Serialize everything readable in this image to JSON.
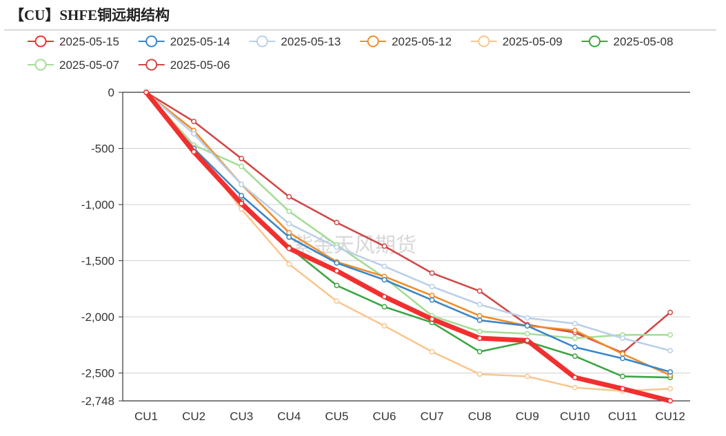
{
  "title": "【CU】SHFE铜远期结构",
  "watermark": "紫金天风期货",
  "chart_data": {
    "type": "line",
    "categories": [
      "CU1",
      "CU2",
      "CU3",
      "CU4",
      "CU5",
      "CU6",
      "CU7",
      "CU8",
      "CU9",
      "CU10",
      "CU11",
      "CU12"
    ],
    "ylim": [
      -2748,
      0
    ],
    "yticks": [
      0,
      -500,
      -1000,
      -1500,
      -2000,
      -2500,
      -2748
    ],
    "ytick_labels": [
      "0",
      "-500",
      "-1,000",
      "-1,500",
      "-2,000",
      "-2,500",
      "-2,748"
    ],
    "grid": true,
    "legend_position": "top-left",
    "series": [
      {
        "name": "2025-05-15",
        "color": "#f03030",
        "emphasis": true,
        "values": [
          0,
          -530,
          -990,
          -1390,
          -1590,
          -1820,
          -2020,
          -2190,
          -2210,
          -2540,
          -2640,
          -2748
        ]
      },
      {
        "name": "2025-05-14",
        "color": "#3a86c8",
        "values": [
          0,
          -500,
          -920,
          -1290,
          -1520,
          -1670,
          -1850,
          -2030,
          -2080,
          -2270,
          -2370,
          -2490
        ]
      },
      {
        "name": "2025-05-13",
        "color": "#b9cfe8",
        "values": [
          0,
          -370,
          -820,
          -1170,
          -1380,
          -1550,
          -1730,
          -1890,
          -2010,
          -2060,
          -2190,
          -2300
        ]
      },
      {
        "name": "2025-05-12",
        "color": "#f08c28",
        "values": [
          0,
          -340,
          -820,
          -1250,
          -1510,
          -1640,
          -1810,
          -1990,
          -2080,
          -2120,
          -2330,
          -2520
        ]
      },
      {
        "name": "2025-05-09",
        "color": "#f9c68e",
        "values": [
          0,
          -490,
          -1040,
          -1530,
          -1860,
          -2080,
          -2310,
          -2510,
          -2530,
          -2630,
          -2660,
          -2640
        ]
      },
      {
        "name": "2025-05-08",
        "color": "#3ca541",
        "values": [
          0,
          -520,
          -970,
          -1380,
          -1720,
          -1910,
          -2050,
          -2310,
          -2220,
          -2350,
          -2530,
          -2540
        ]
      },
      {
        "name": "2025-05-07",
        "color": "#a4dd95",
        "values": [
          0,
          -470,
          -660,
          -1060,
          -1360,
          -1650,
          -1990,
          -2130,
          -2150,
          -2190,
          -2160,
          -2160
        ]
      },
      {
        "name": "2025-05-06",
        "color": "#d24646",
        "values": [
          0,
          -260,
          -590,
          -930,
          -1160,
          -1370,
          -1610,
          -1770,
          -2070,
          -2140,
          -2320,
          -1960
        ]
      }
    ]
  }
}
